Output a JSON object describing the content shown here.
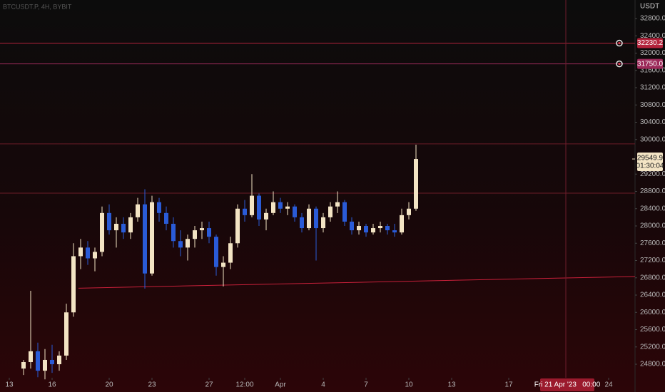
{
  "chart_data": {
    "type": "candlestick",
    "title": "BTCUSDT.P, 4H, BYBIT",
    "currency": "USDT",
    "up_color": "#f3e4c4",
    "down_color": "#2a5bd7",
    "x": [
      1,
      1.5,
      2,
      2.5,
      3,
      3.5,
      4,
      4.5,
      5,
      5.5,
      6,
      6.5,
      7,
      7.5,
      8,
      8.5,
      9,
      9.5,
      10,
      10.5,
      11,
      11.5,
      12,
      12.5,
      13,
      13.5,
      14,
      14.5,
      15,
      15.5,
      16,
      16.5,
      17,
      17.5,
      18,
      18.5,
      19,
      19.5,
      20,
      20.5,
      21,
      21.5,
      22,
      22.5,
      23,
      23.5,
      24,
      24.5,
      25,
      25.5,
      26,
      26.5,
      27,
      27.5,
      28,
      28.5
    ],
    "open": [
      24700,
      24850,
      25100,
      24650,
      24900,
      24800,
      25000,
      26000,
      27300,
      27500,
      27250,
      27400,
      28300,
      27900,
      28050,
      27850,
      28200,
      28500,
      26900,
      28550,
      28300,
      28050,
      27650,
      27500,
      27700,
      27900,
      27950,
      27750,
      27050,
      27150,
      27600,
      28400,
      28250,
      28700,
      28150,
      28300,
      28550,
      28400,
      28450,
      28200,
      27950,
      28400,
      27950,
      28200,
      28450,
      28550,
      28100,
      27900,
      28000,
      27850,
      27950,
      28000,
      27900,
      27850,
      28250,
      28400
    ],
    "high": [
      24900,
      26500,
      25300,
      25150,
      25250,
      25100,
      26200,
      27600,
      27700,
      27650,
      27500,
      28450,
      28500,
      28200,
      28200,
      28300,
      28650,
      28850,
      28700,
      28650,
      28450,
      28200,
      27900,
      27800,
      28000,
      28100,
      28100,
      27800,
      27300,
      27750,
      28500,
      28600,
      29200,
      28750,
      28400,
      28800,
      28650,
      28550,
      28500,
      28300,
      28500,
      28450,
      28300,
      28550,
      28800,
      28600,
      28200,
      28100,
      28050,
      28050,
      28100,
      28050,
      28050,
      28400,
      28550,
      29880
    ],
    "low": [
      24550,
      24700,
      24500,
      24450,
      24600,
      24650,
      24900,
      25900,
      27000,
      27100,
      26950,
      27300,
      27800,
      27500,
      27700,
      27700,
      28100,
      26550,
      26850,
      28100,
      27900,
      27500,
      27300,
      27200,
      27500,
      27700,
      27600,
      26850,
      26600,
      27000,
      27500,
      28100,
      28200,
      28000,
      27900,
      28250,
      28300,
      28250,
      28100,
      27850,
      27900,
      27200,
      27850,
      28100,
      28300,
      28000,
      27800,
      27800,
      27750,
      27800,
      27850,
      27800,
      27750,
      27800,
      28150,
      28350
    ],
    "close": [
      24850,
      25100,
      24650,
      24900,
      24800,
      25000,
      26000,
      27300,
      27500,
      27250,
      27400,
      28300,
      27900,
      28050,
      27850,
      28200,
      28500,
      26900,
      28550,
      28300,
      28050,
      27650,
      27500,
      27700,
      27900,
      27950,
      27750,
      27050,
      27150,
      27600,
      28400,
      28250,
      28700,
      28150,
      28300,
      28550,
      28400,
      28450,
      28200,
      27950,
      28400,
      27950,
      28200,
      28450,
      28550,
      28100,
      27900,
      28000,
      27850,
      27950,
      28000,
      27900,
      27850,
      28250,
      28400,
      29550
    ],
    "xlim": [
      -0.65,
      43.85
    ],
    "xticks": [
      {
        "value": 0,
        "label": "13"
      },
      {
        "value": 3,
        "label": "16"
      },
      {
        "value": 7,
        "label": "20"
      },
      {
        "value": 10,
        "label": "23"
      },
      {
        "value": 14,
        "label": "27"
      },
      {
        "value": 16.5,
        "label": "12:00"
      },
      {
        "value": 19,
        "label": "Apr"
      },
      {
        "value": 22,
        "label": "4"
      },
      {
        "value": 25,
        "label": "7"
      },
      {
        "value": 28,
        "label": "10"
      },
      {
        "value": 31,
        "label": "13"
      },
      {
        "value": 35,
        "label": "17"
      },
      {
        "value": 42,
        "label": "24"
      }
    ],
    "ylim": [
      24487,
      33229
    ],
    "yticks": [
      {
        "value": 24800,
        "label": "24800.0"
      },
      {
        "value": 25200,
        "label": "25200.0"
      },
      {
        "value": 25600,
        "label": "25600.0"
      },
      {
        "value": 26000,
        "label": "26000.0"
      },
      {
        "value": 26400,
        "label": "26400.0"
      },
      {
        "value": 26800,
        "label": "26800.0"
      },
      {
        "value": 27200,
        "label": "27200.0"
      },
      {
        "value": 27600,
        "label": "27600.0"
      },
      {
        "value": 28000,
        "label": "28000.0"
      },
      {
        "value": 28400,
        "label": "28400.0"
      },
      {
        "value": 28800,
        "label": "28800.0"
      },
      {
        "value": 29200,
        "label": "29200.0"
      },
      {
        "value": 30000,
        "label": "30000.0"
      },
      {
        "value": 30400,
        "label": "30400.0"
      },
      {
        "value": 30800,
        "label": "30800.0"
      },
      {
        "value": 31200,
        "label": "31200.0"
      },
      {
        "value": 31600,
        "label": "31600.0"
      },
      {
        "value": 32000,
        "label": "32000.0"
      },
      {
        "value": 32400,
        "label": "32400.0"
      },
      {
        "value": 32800,
        "label": "32800.0"
      }
    ],
    "price_lines": [
      {
        "value": 32230.2,
        "color": "#b3233b"
      },
      {
        "value": 31750,
        "label": "31750.0",
        "color": "#9c2a5a"
      },
      {
        "value": 29900,
        "color": "#6b1c28"
      },
      {
        "value": 28760,
        "color": "#6b1c28"
      }
    ],
    "trendline": {
      "x": [
        4.85,
        43.85
      ],
      "values": [
        26560,
        26830
      ],
      "color": "#c8203a"
    },
    "last_price": 29549.9,
    "countdown": "01:30:04",
    "crosshair": {
      "x": 39,
      "label": "Fri 21 Apr '23   00:00"
    }
  }
}
